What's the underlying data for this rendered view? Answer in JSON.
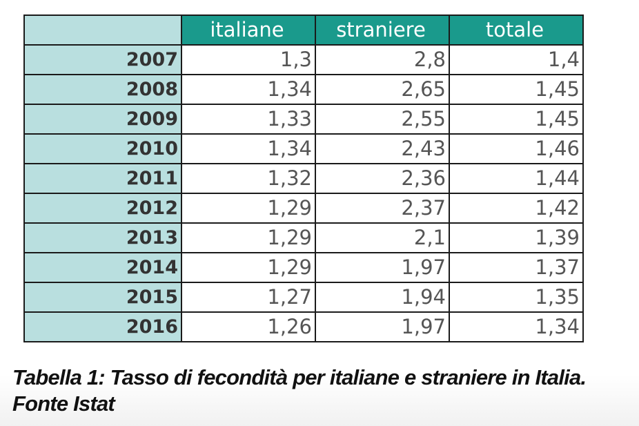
{
  "table": {
    "columns": [
      "italiane",
      "straniere",
      "totale"
    ],
    "rows": [
      [
        "2007",
        "1,3",
        "2,8",
        "1,4"
      ],
      [
        "2008",
        "1,34",
        "2,65",
        "1,45"
      ],
      [
        "2009",
        "1,33",
        "2,55",
        "1,45"
      ],
      [
        "2010",
        "1,34",
        "2,43",
        "1,46"
      ],
      [
        "2011",
        "1,32",
        "2,36",
        "1,44"
      ],
      [
        "2012",
        "1,29",
        "2,37",
        "1,42"
      ],
      [
        "2013",
        "1,29",
        "2,1",
        "1,39"
      ],
      [
        "2014",
        "1,29",
        "1,97",
        "1,37"
      ],
      [
        "2015",
        "1,27",
        "1,94",
        "1,35"
      ],
      [
        "2016",
        "1,26",
        "1,97",
        "1,34"
      ]
    ]
  },
  "caption": {
    "lines": [
      "Tabella 1: Tasso di fecondità per italiane e straniere in Italia.",
      "Fonte Istat"
    ]
  }
}
